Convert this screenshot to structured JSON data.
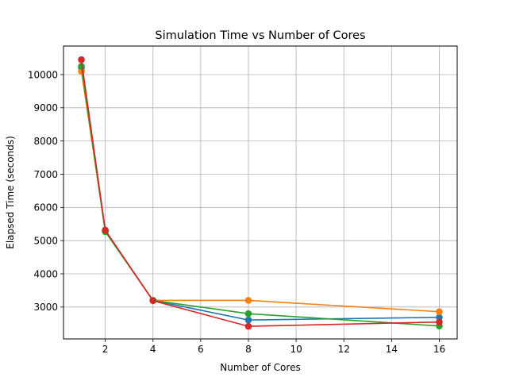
{
  "chart_data": {
    "type": "line",
    "title": "Simulation Time vs Number of Cores",
    "xlabel": "Number of Cores",
    "ylabel": "Elapsed Time (seconds)",
    "x": [
      1,
      2,
      4,
      8,
      16
    ],
    "xlim": [
      0.25,
      16.75
    ],
    "ylim": [
      2040,
      10860
    ],
    "xticks": [
      2,
      4,
      6,
      8,
      10,
      12,
      14,
      16
    ],
    "yticks": [
      3000,
      4000,
      5000,
      6000,
      7000,
      8000,
      9000,
      10000
    ],
    "grid": true,
    "legend": "none",
    "series": [
      {
        "color": "#1f77b4",
        "values": [
          10200,
          5280,
          3200,
          2610,
          2690
        ]
      },
      {
        "color": "#ff7f0e",
        "values": [
          10100,
          5300,
          3200,
          3200,
          2860
        ]
      },
      {
        "color": "#2ca02c",
        "values": [
          10250,
          5270,
          3200,
          2800,
          2430
        ]
      },
      {
        "color": "#d62728",
        "values": [
          10450,
          5320,
          3190,
          2420,
          2550
        ]
      }
    ]
  }
}
